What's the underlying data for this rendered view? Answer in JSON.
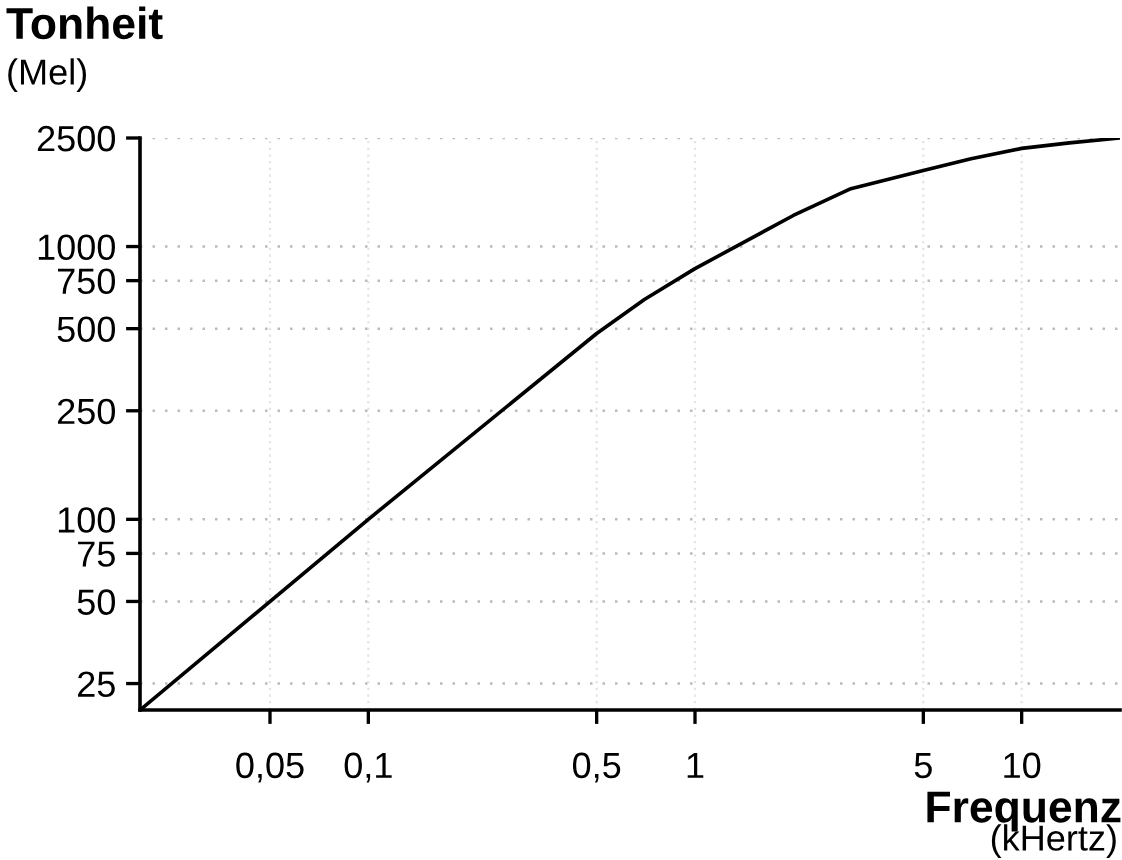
{
  "chart_data": {
    "type": "line",
    "ylabel": "Tonheit",
    "xlabel": "Frequenz",
    "annotations": [
      "(Mel)",
      "(kHertz)"
    ],
    "x": [
      0.02,
      0.1,
      0.5,
      0.7,
      1,
      2,
      3,
      5,
      7,
      10,
      14,
      20
    ],
    "series": [
      {
        "color": "#000000",
        "values": [
          20,
          100,
          480,
          640,
          830,
          1300,
          1630,
          1900,
          2100,
          2290,
          2400,
          2500
        ]
      }
    ],
    "log": "xy",
    "xlim": [
      0.02,
      20
    ],
    "ylim": [
      20,
      2500
    ],
    "xticks": [
      {
        "value": 0.05,
        "label": "0,05"
      },
      {
        "value": 0.1,
        "label": "0,1"
      },
      {
        "value": 0.5,
        "label": "0,5"
      },
      1,
      5,
      10
    ],
    "yticks": [
      25,
      50,
      75,
      100,
      250,
      500,
      750,
      1000,
      2500
    ],
    "grid": true,
    "marker": "none",
    "line_style": "solid"
  }
}
